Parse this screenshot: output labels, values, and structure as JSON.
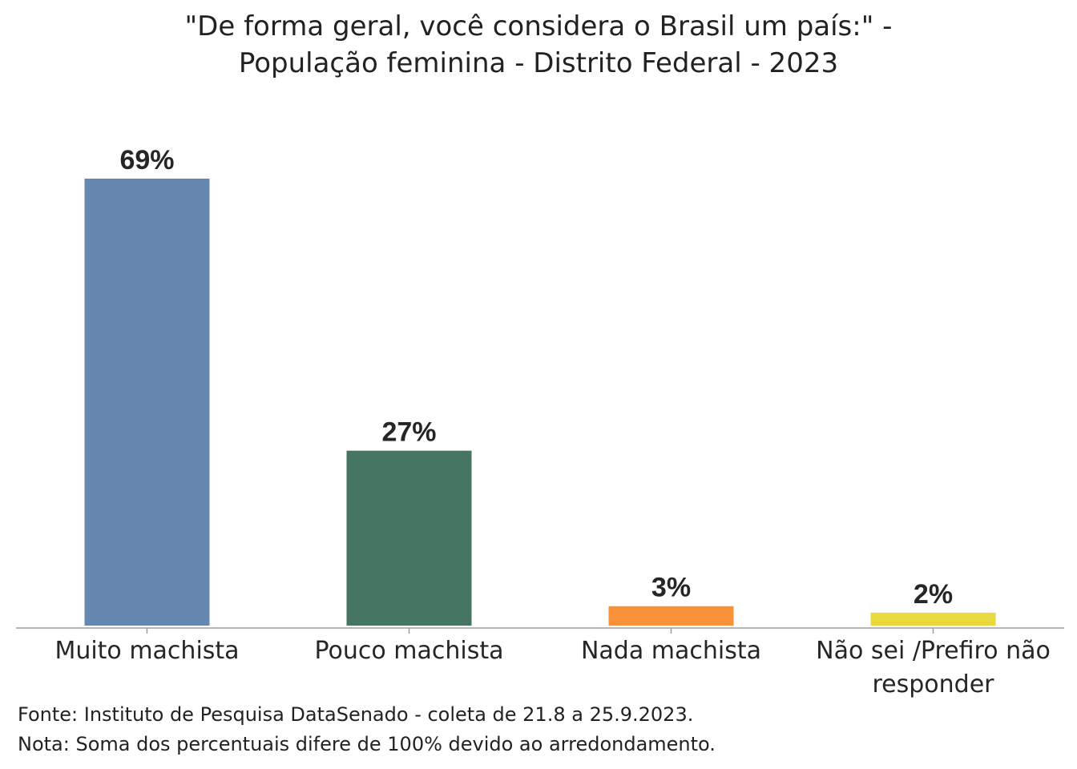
{
  "chart_data": {
    "type": "bar",
    "title_line1": "\"De forma geral, você considera o Brasil um país:\" -",
    "title_line2": "População feminina - Distrito Federal - 2023",
    "categories": [
      "Muito machista",
      "Pouco machista",
      "Nada machista",
      "Não sei /Prefiro não responder"
    ],
    "category_lines": [
      [
        "Muito machista"
      ],
      [
        "Pouco machista"
      ],
      [
        "Nada machista"
      ],
      [
        "Não sei /Prefiro não",
        "responder"
      ]
    ],
    "values": [
      69,
      27,
      3,
      2
    ],
    "value_labels": [
      "69%",
      "27%",
      "3%",
      "2%"
    ],
    "colors": [
      "#6688b0",
      "#467562",
      "#f99139",
      "#e8d93c"
    ],
    "ylim": [
      0,
      69
    ],
    "xlabel": "",
    "ylabel": "",
    "grid": false,
    "legend": "none"
  },
  "notes": {
    "source": "Fonte: Instituto de Pesquisa DataSenado - coleta de 21.8 a 25.9.2023.",
    "note": "Nota: Soma dos percentuais difere de 100% devido ao arredondamento."
  }
}
